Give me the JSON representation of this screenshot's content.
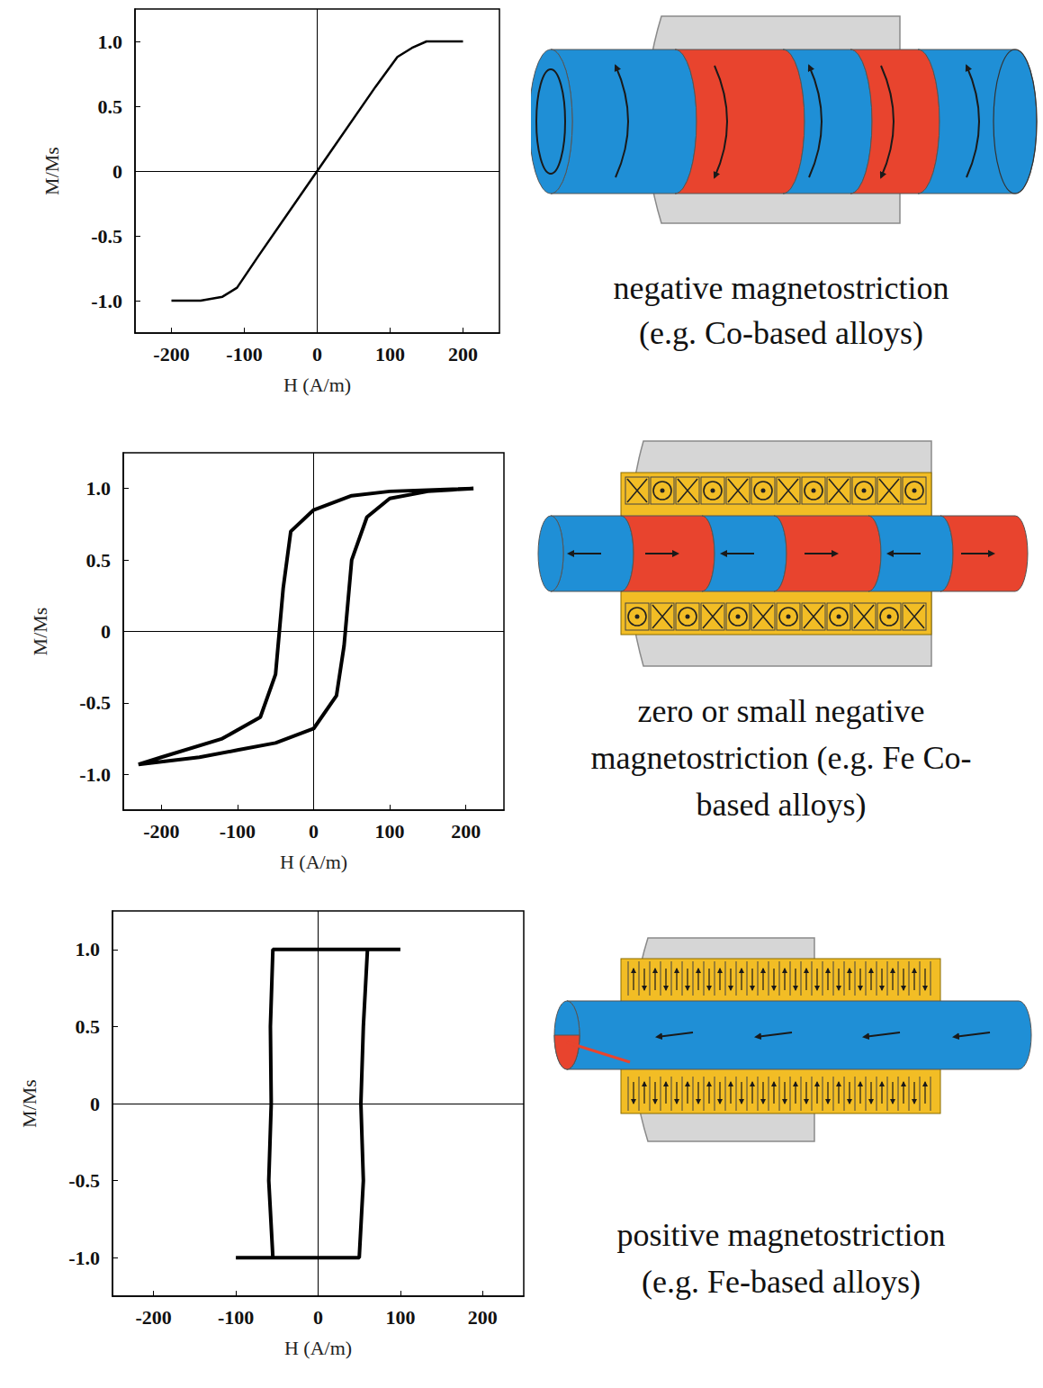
{
  "chart_data": [
    {
      "type": "line",
      "x_label": "H (A/m)",
      "y_label": "M/Ms",
      "xlim": [
        -250,
        250
      ],
      "xticks": [
        -200,
        -100,
        0,
        100,
        200
      ],
      "ylim": [
        -1.25,
        1.25
      ],
      "yticks": [
        {
          "value": -1,
          "label": "-1.0"
        },
        -0.5,
        0,
        0.5,
        {
          "value": 1,
          "label": "1.0"
        }
      ],
      "x": [
        -200,
        -160,
        -130,
        -110,
        -80,
        0,
        80,
        110,
        130,
        150,
        200
      ],
      "values": [
        -1.0,
        -1.0,
        -0.97,
        -0.9,
        -0.65,
        0.0,
        0.65,
        0.88,
        0.95,
        1.0,
        1.0
      ],
      "color": "#000000",
      "annotation": [
        "negative magnetostriction",
        "(e.g. Co-based alloys)"
      ]
    },
    {
      "type": "line",
      "x_label": "H (A/m)",
      "y_label": "M/Ms",
      "xlim": [
        -250,
        250
      ],
      "xticks": [
        -200,
        -100,
        0,
        100,
        200
      ],
      "ylim": [
        -1.25,
        1.25
      ],
      "yticks": [
        {
          "value": -1,
          "label": "-1.0"
        },
        -0.5,
        0,
        0.5,
        {
          "value": 1,
          "label": "1.0"
        }
      ],
      "x": [
        210,
        100,
        50,
        0,
        -30,
        -40,
        -45,
        -50,
        -70,
        -120,
        -200,
        -230,
        -150,
        -100,
        -50,
        0,
        30,
        40,
        45,
        50,
        70,
        100,
        150,
        210
      ],
      "values": [
        1.0,
        0.98,
        0.95,
        0.85,
        0.7,
        0.3,
        0.0,
        -0.3,
        -0.6,
        -0.75,
        -0.88,
        -0.93,
        -0.88,
        -0.83,
        -0.78,
        -0.68,
        -0.45,
        -0.1,
        0.2,
        0.5,
        0.8,
        0.93,
        0.98,
        1.0
      ],
      "color": "#000000",
      "annotation": [
        "zero or small negative",
        "magnetostriction (e.g. Fe Co-",
        "based alloys)"
      ]
    },
    {
      "type": "line",
      "x_label": "H (A/m)",
      "y_label": "M/Ms",
      "xlim": [
        -250,
        250
      ],
      "xticks": [
        -200,
        -100,
        0,
        100,
        200
      ],
      "ylim": [
        -1.25,
        1.25
      ],
      "yticks": [
        {
          "value": -1,
          "label": "-1.0"
        },
        -0.5,
        0,
        0.5,
        {
          "value": 1,
          "label": "1.0"
        }
      ],
      "x": [
        100,
        -55,
        -58,
        -57,
        -60,
        -55,
        -100,
        50,
        55,
        52,
        55,
        60,
        100
      ],
      "values": [
        1.0,
        1.0,
        0.5,
        0.0,
        -0.5,
        -1.0,
        -1.0,
        -1.0,
        -0.5,
        0.0,
        0.5,
        1.0,
        1.0
      ],
      "color": "#000000",
      "annotation": [
        "positive magnetostriction",
        "(e.g. Fe-based alloys)"
      ]
    }
  ]
}
